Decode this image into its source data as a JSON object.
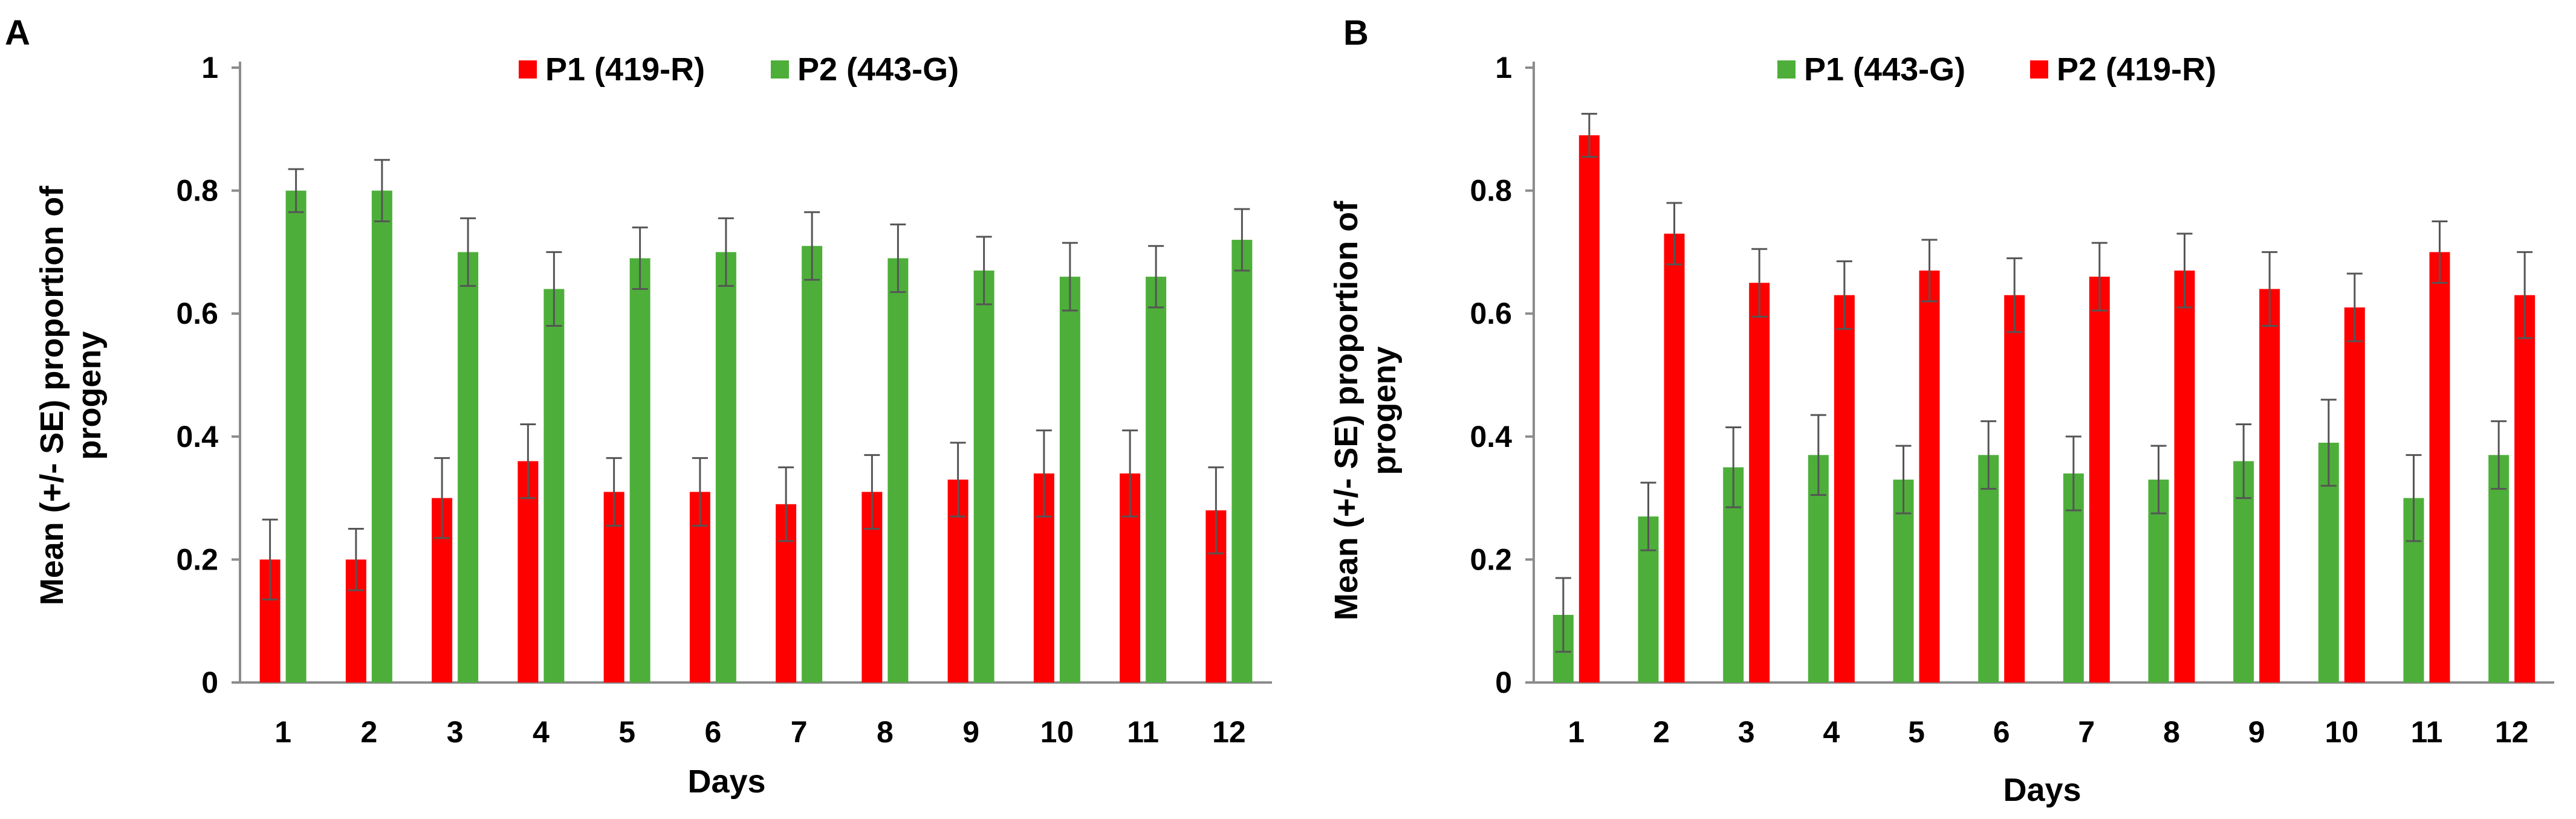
{
  "figure": {
    "panels": [
      "A",
      "B"
    ]
  },
  "chart_data": [
    {
      "panel_label": "A",
      "type": "bar",
      "title": "",
      "xlabel": "Days",
      "ylabel_line1": "Mean (+/- SE) proportion  of",
      "ylabel_line2": "progeny",
      "ylim": [
        0,
        1
      ],
      "yticks": [
        "0",
        "0.2",
        "0.4",
        "0.6",
        "0.8",
        "1"
      ],
      "categories": [
        "1",
        "2",
        "3",
        "4",
        "5",
        "6",
        "7",
        "8",
        "9",
        "10",
        "11",
        "12"
      ],
      "legend_position": "top",
      "series": [
        {
          "name": "P1 (419-R)",
          "color": "#ff0000",
          "values": [
            0.2,
            0.2,
            0.3,
            0.36,
            0.31,
            0.31,
            0.29,
            0.31,
            0.33,
            0.34,
            0.34,
            0.28
          ],
          "errors": [
            0.065,
            0.05,
            0.065,
            0.06,
            0.055,
            0.055,
            0.06,
            0.06,
            0.06,
            0.07,
            0.07,
            0.07
          ]
        },
        {
          "name": "P2 (443-G)",
          "color": "#4daf3a",
          "values": [
            0.8,
            0.8,
            0.7,
            0.64,
            0.69,
            0.7,
            0.71,
            0.69,
            0.67,
            0.66,
            0.66,
            0.72
          ],
          "errors": [
            0.035,
            0.05,
            0.055,
            0.06,
            0.05,
            0.055,
            0.055,
            0.055,
            0.055,
            0.055,
            0.05,
            0.05
          ]
        }
      ]
    },
    {
      "panel_label": "B",
      "type": "bar",
      "title": "",
      "xlabel": "Days",
      "ylabel_line1": "Mean (+/- SE) proportion  of",
      "ylabel_line2": "progeny",
      "ylim": [
        0,
        1
      ],
      "yticks": [
        "0",
        "0.2",
        "0.4",
        "0.6",
        "0.8",
        "1"
      ],
      "categories": [
        "1",
        "2",
        "3",
        "4",
        "5",
        "6",
        "7",
        "8",
        "9",
        "10",
        "11",
        "12"
      ],
      "legend_position": "top",
      "series": [
        {
          "name": "P1 (443-G)",
          "color": "#4daf3a",
          "values": [
            0.11,
            0.27,
            0.35,
            0.37,
            0.33,
            0.37,
            0.34,
            0.33,
            0.36,
            0.39,
            0.3,
            0.37
          ],
          "errors": [
            0.06,
            0.055,
            0.065,
            0.065,
            0.055,
            0.055,
            0.06,
            0.055,
            0.06,
            0.07,
            0.07,
            0.055
          ]
        },
        {
          "name": "P2 (419-R)",
          "color": "#ff0000",
          "values": [
            0.89,
            0.73,
            0.65,
            0.63,
            0.67,
            0.63,
            0.66,
            0.67,
            0.64,
            0.61,
            0.7,
            0.63
          ],
          "errors": [
            0.035,
            0.05,
            0.055,
            0.055,
            0.05,
            0.06,
            0.055,
            0.06,
            0.06,
            0.055,
            0.05,
            0.07
          ]
        }
      ]
    }
  ]
}
